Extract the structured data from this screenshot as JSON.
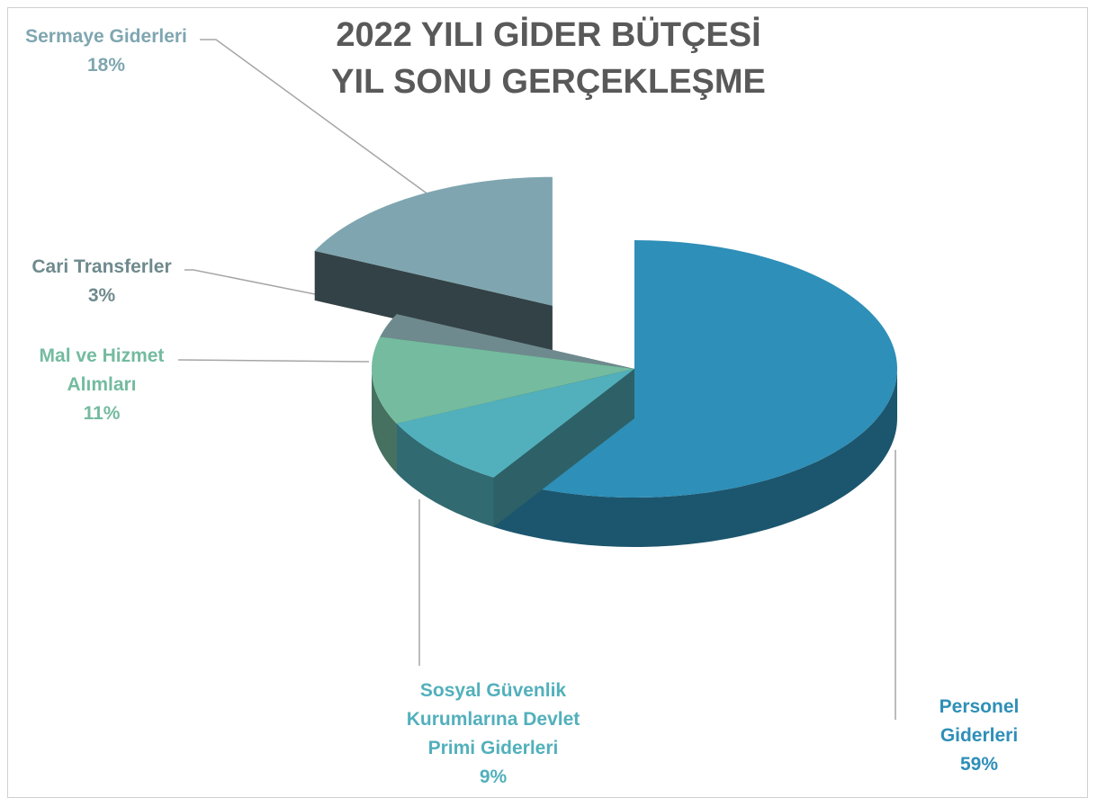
{
  "chart_data": {
    "type": "pie",
    "title": [
      "2022 YILI GİDER BÜTÇESİ",
      "YIL SONU GERÇEKLEŞME"
    ],
    "categories": [
      "Personel Giderleri",
      "Sosyal Güvenlik Kurumlarına Devlet Primi Giderleri",
      "Mal ve Hizmet Alımları",
      "Cari Transferler",
      "Sermaye Giderleri"
    ],
    "values": [
      59,
      9,
      11,
      3,
      18
    ],
    "value_labels": [
      "59%",
      "9%",
      "11%",
      "3%",
      "18%"
    ],
    "colors": [
      "#2e8fb8",
      "#52b0bc",
      "#74bb9f",
      "#6f8a8e",
      "#7fa6b0"
    ],
    "explode": [
      false,
      false,
      false,
      false,
      true
    ]
  }
}
